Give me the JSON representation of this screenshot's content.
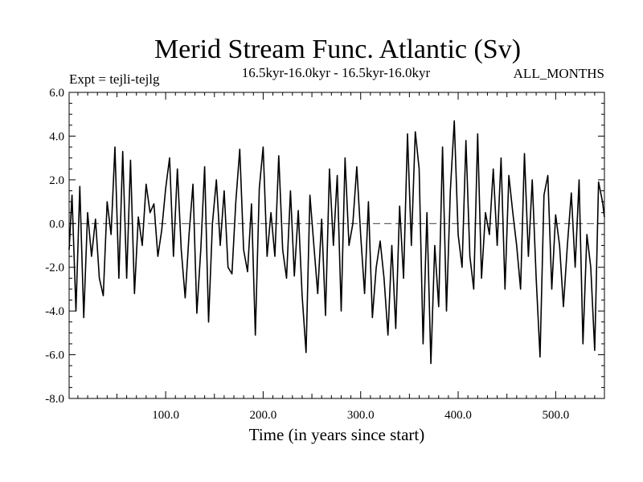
{
  "chart_data": {
    "type": "line",
    "title": "Merid Stream Func. Atlantic (Sv)",
    "subtitle_left": "Expt = tejli-tejlg",
    "subtitle_center": "16.5kyr-16.0kyr - 16.5kyr-16.0kyr",
    "subtitle_right": "ALL_MONTHS",
    "xlabel": "Time (in years since start)",
    "ylabel": "",
    "xlim": [
      1,
      550
    ],
    "ylim": [
      -8,
      6
    ],
    "xticks": [
      100,
      200,
      300,
      400,
      500
    ],
    "xtick_labels": [
      "100.0",
      "200.0",
      "300.0",
      "400.0",
      "500.0"
    ],
    "yticks": [
      6,
      4,
      2,
      0,
      -2,
      -4,
      -6,
      -8
    ],
    "ytick_labels": [
      "6.0",
      "4.0",
      "2.0",
      "0.0",
      "-2.0",
      "-4.0",
      "-6.0",
      "-8.0"
    ],
    "reference_line": {
      "y": 0,
      "style": "dashed"
    },
    "series": [
      {
        "name": "tejli-tejlg",
        "x": [
          1,
          4,
          8,
          12,
          16,
          20,
          24,
          28,
          32,
          36,
          40,
          44,
          48,
          52,
          56,
          60,
          64,
          68,
          72,
          76,
          80,
          84,
          88,
          92,
          96,
          100,
          104,
          108,
          112,
          116,
          120,
          124,
          128,
          132,
          136,
          140,
          144,
          148,
          152,
          156,
          160,
          164,
          168,
          172,
          176,
          180,
          184,
          188,
          192,
          196,
          200,
          204,
          208,
          212,
          216,
          220,
          224,
          228,
          232,
          236,
          240,
          244,
          248,
          252,
          256,
          260,
          264,
          268,
          272,
          276,
          280,
          284,
          288,
          292,
          296,
          300,
          304,
          308,
          312,
          316,
          320,
          324,
          328,
          332,
          336,
          340,
          344,
          348,
          352,
          356,
          360,
          364,
          368,
          372,
          376,
          380,
          384,
          388,
          392,
          396,
          400,
          404,
          408,
          412,
          416,
          420,
          424,
          428,
          432,
          436,
          440,
          444,
          448,
          452,
          456,
          460,
          464,
          468,
          472,
          476,
          480,
          484,
          488,
          492,
          496,
          500,
          504,
          508,
          512,
          516,
          520,
          524,
          528,
          532,
          536,
          540,
          544,
          548,
          550
        ],
        "values": [
          -1.2,
          1.3,
          -4.0,
          1.7,
          -4.3,
          0.5,
          -1.5,
          0.2,
          -2.5,
          -3.3,
          1.0,
          -0.5,
          3.5,
          -2.5,
          3.3,
          -2.5,
          2.9,
          -3.2,
          0.3,
          -1.0,
          1.8,
          0.5,
          0.9,
          -1.5,
          -0.3,
          1.6,
          3.0,
          -1.5,
          2.5,
          -1.2,
          -3.4,
          -0.5,
          1.8,
          -4.1,
          -1.2,
          2.6,
          -4.5,
          0.0,
          2.0,
          -1.0,
          1.5,
          -2.0,
          -2.3,
          1.0,
          3.4,
          -1.2,
          -2.2,
          0.9,
          -5.1,
          1.6,
          3.5,
          -1.5,
          0.5,
          -1.5,
          3.1,
          -1.2,
          -2.5,
          1.5,
          -2.4,
          0.6,
          -3.3,
          -5.9,
          1.3,
          -1.0,
          -3.2,
          0.2,
          -4.2,
          2.5,
          -1.0,
          2.2,
          -4.0,
          3.0,
          -1.0,
          0.0,
          2.6,
          -0.5,
          -3.2,
          1.0,
          -4.3,
          -2.0,
          -0.8,
          -2.5,
          -5.1,
          -1.0,
          -4.8,
          0.8,
          -2.5,
          4.1,
          -1.0,
          4.2,
          2.5,
          -5.5,
          0.5,
          -6.4,
          -1.0,
          -3.8,
          3.5,
          -4.0,
          1.5,
          4.7,
          -0.5,
          -2.0,
          3.8,
          -1.5,
          -3.0,
          4.1,
          -2.5,
          0.5,
          -0.5,
          2.5,
          -1.0,
          3.0,
          -3.0,
          2.2,
          0.5,
          -1.0,
          -3.0,
          3.2,
          -1.5,
          2.0,
          -2.5,
          -6.1,
          1.3,
          2.2,
          -3.0,
          0.4,
          -1.0,
          -3.8,
          -1.0,
          1.4,
          -2.0,
          2.0,
          -5.5,
          -0.5,
          -2.0,
          -5.8,
          1.9,
          1.0,
          0.3
        ]
      }
    ]
  }
}
